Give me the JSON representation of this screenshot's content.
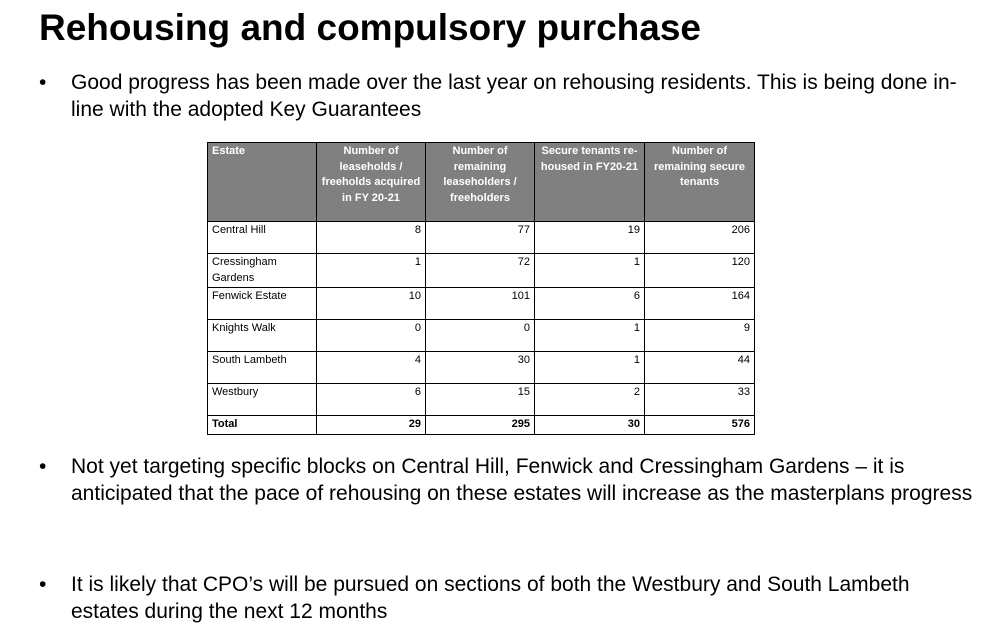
{
  "page": {
    "title": "Rehousing and compulsory purchase",
    "bullet_glyph": "•",
    "bullets": [
      "Good progress has been made over the last year on rehousing residents. This is being done in-line with the adopted Key Guarantees",
      "Not yet targeting specific blocks on Central Hill, Fenwick and Cressingham Gardens – it is anticipated that the pace of rehousing on these estates will increase as the masterplans progress",
      "It is likely that CPO’s will be pursued on sections of both the Westbury and South Lambeth estates during the next 12 months"
    ]
  },
  "table": {
    "header_color": "#808080",
    "headers": [
      "Estate",
      "Number of leaseholds / freeholds acquired in FY 20-21",
      "Number of remaining leaseholders / freeholders",
      "Secure tenants re-housed in FY20-21",
      "Number of remaining secure tenants"
    ],
    "rows": [
      [
        "Central Hill",
        "8",
        "77",
        "19",
        "206"
      ],
      [
        "Cressingham Gardens",
        "1",
        "72",
        "1",
        "120"
      ],
      [
        "Fenwick Estate",
        "10",
        "101",
        "6",
        "164"
      ],
      [
        "Knights Walk",
        "0",
        "0",
        "1",
        "9"
      ],
      [
        "South Lambeth",
        "4",
        "30",
        "1",
        "44"
      ],
      [
        "Westbury",
        "6",
        "15",
        "2",
        "33"
      ]
    ],
    "total": [
      "Total",
      "29",
      "295",
      "30",
      "576"
    ]
  }
}
